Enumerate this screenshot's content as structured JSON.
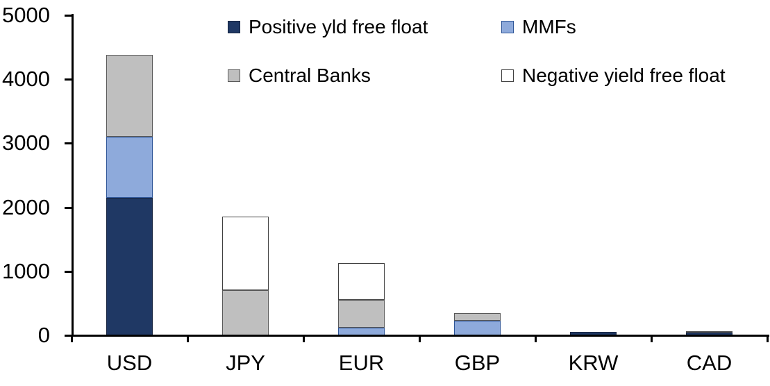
{
  "chart_data": {
    "type": "bar",
    "subtype": "stacked",
    "title": "",
    "xlabel": "",
    "ylabel": "",
    "categories": [
      "USD",
      "JPY",
      "EUR",
      "GBP",
      "KRW",
      "CAD"
    ],
    "series": [
      {
        "name": "Positive yld free float",
        "color": "#1F3864",
        "border_color": "#16243F",
        "values": [
          2150,
          0,
          0,
          0,
          55,
          40
        ]
      },
      {
        "name": "MMFs",
        "color": "#8EAADB",
        "border_color": "#2E5597",
        "values": [
          950,
          0,
          120,
          230,
          0,
          0
        ]
      },
      {
        "name": "Central Banks",
        "color": "#BFBFBF",
        "border_color": "#595959",
        "values": [
          1280,
          710,
          430,
          115,
          0,
          25
        ]
      },
      {
        "name": "Negative yield free float",
        "color": "#FFFFFF",
        "border_color": "#404040",
        "values": [
          0,
          1150,
          575,
          0,
          0,
          0
        ]
      }
    ],
    "stack_totals": [
      4380,
      1860,
      1125,
      345,
      55,
      65
    ],
    "ylim": [
      0,
      5000
    ],
    "yticks": [
      0,
      1000,
      2000,
      3000,
      4000,
      5000
    ],
    "grid": false,
    "legend_position": "top",
    "axis_color": "#000000",
    "background_color": "#FFFFFF"
  }
}
